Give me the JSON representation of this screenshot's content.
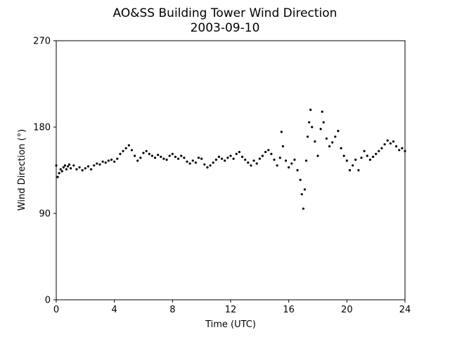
{
  "chart_data": {
    "type": "scatter",
    "title": "AO&SS Building Tower Wind Direction",
    "subtitle": "2003-09-10",
    "xlabel": "Time (UTC)",
    "ylabel": "Wind Direction (°)",
    "xlim": [
      0,
      24
    ],
    "ylim": [
      0,
      270
    ],
    "xticks": [
      0,
      4,
      8,
      12,
      16,
      20,
      24
    ],
    "yticks": [
      0,
      90,
      180,
      270
    ],
    "grid": false,
    "marker_color": "#000000",
    "series": [
      {
        "name": "",
        "points": [
          [
            0.0,
            140
          ],
          [
            0.1,
            128
          ],
          [
            0.2,
            132
          ],
          [
            0.3,
            136
          ],
          [
            0.4,
            134
          ],
          [
            0.5,
            138
          ],
          [
            0.6,
            140
          ],
          [
            0.7,
            136
          ],
          [
            0.8,
            139
          ],
          [
            0.9,
            141
          ],
          [
            1.0,
            137
          ],
          [
            1.2,
            140
          ],
          [
            1.4,
            136
          ],
          [
            1.6,
            138
          ],
          [
            1.8,
            135
          ],
          [
            2.0,
            137
          ],
          [
            2.2,
            139
          ],
          [
            2.4,
            136
          ],
          [
            2.6,
            140
          ],
          [
            2.8,
            142
          ],
          [
            3.0,
            141
          ],
          [
            3.2,
            144
          ],
          [
            3.4,
            143
          ],
          [
            3.6,
            145
          ],
          [
            3.8,
            146
          ],
          [
            4.0,
            144
          ],
          [
            4.2,
            147
          ],
          [
            4.4,
            152
          ],
          [
            4.6,
            155
          ],
          [
            4.8,
            158
          ],
          [
            5.0,
            161
          ],
          [
            5.2,
            156
          ],
          [
            5.4,
            150
          ],
          [
            5.6,
            145
          ],
          [
            5.8,
            148
          ],
          [
            6.0,
            153
          ],
          [
            6.2,
            155
          ],
          [
            6.4,
            152
          ],
          [
            6.6,
            150
          ],
          [
            6.8,
            148
          ],
          [
            7.0,
            151
          ],
          [
            7.2,
            149
          ],
          [
            7.4,
            147
          ],
          [
            7.6,
            146
          ],
          [
            7.8,
            150
          ],
          [
            8.0,
            152
          ],
          [
            8.2,
            149
          ],
          [
            8.4,
            147
          ],
          [
            8.6,
            150
          ],
          [
            8.8,
            148
          ],
          [
            9.0,
            144
          ],
          [
            9.2,
            142
          ],
          [
            9.4,
            145
          ],
          [
            9.6,
            143
          ],
          [
            9.8,
            148
          ],
          [
            10.0,
            147
          ],
          [
            10.2,
            141
          ],
          [
            10.4,
            138
          ],
          [
            10.6,
            140
          ],
          [
            10.8,
            143
          ],
          [
            11.0,
            146
          ],
          [
            11.2,
            149
          ],
          [
            11.4,
            147
          ],
          [
            11.6,
            145
          ],
          [
            11.8,
            148
          ],
          [
            12.0,
            150
          ],
          [
            12.2,
            147
          ],
          [
            12.4,
            152
          ],
          [
            12.6,
            154
          ],
          [
            12.8,
            149
          ],
          [
            13.0,
            146
          ],
          [
            13.2,
            143
          ],
          [
            13.4,
            140
          ],
          [
            13.6,
            145
          ],
          [
            13.8,
            142
          ],
          [
            14.0,
            147
          ],
          [
            14.2,
            150
          ],
          [
            14.4,
            154
          ],
          [
            14.6,
            156
          ],
          [
            14.8,
            152
          ],
          [
            15.0,
            146
          ],
          [
            15.2,
            140
          ],
          [
            15.4,
            148
          ],
          [
            15.5,
            175
          ],
          [
            15.6,
            160
          ],
          [
            15.8,
            145
          ],
          [
            16.0,
            138
          ],
          [
            16.2,
            142
          ],
          [
            16.4,
            146
          ],
          [
            16.6,
            135
          ],
          [
            16.8,
            125
          ],
          [
            16.9,
            110
          ],
          [
            17.0,
            95
          ],
          [
            17.1,
            115
          ],
          [
            17.2,
            145
          ],
          [
            17.3,
            170
          ],
          [
            17.4,
            185
          ],
          [
            17.5,
            198
          ],
          [
            17.6,
            180
          ],
          [
            17.8,
            165
          ],
          [
            18.0,
            150
          ],
          [
            18.2,
            178
          ],
          [
            18.3,
            196
          ],
          [
            18.4,
            185
          ],
          [
            18.6,
            168
          ],
          [
            18.8,
            160
          ],
          [
            19.0,
            164
          ],
          [
            19.2,
            170
          ],
          [
            19.4,
            176
          ],
          [
            19.6,
            158
          ],
          [
            19.8,
            150
          ],
          [
            20.0,
            145
          ],
          [
            20.2,
            135
          ],
          [
            20.4,
            140
          ],
          [
            20.6,
            146
          ],
          [
            20.8,
            135
          ],
          [
            21.0,
            148
          ],
          [
            21.2,
            155
          ],
          [
            21.4,
            150
          ],
          [
            21.6,
            146
          ],
          [
            21.8,
            149
          ],
          [
            22.0,
            152
          ],
          [
            22.2,
            155
          ],
          [
            22.4,
            158
          ],
          [
            22.6,
            162
          ],
          [
            22.8,
            166
          ],
          [
            23.0,
            163
          ],
          [
            23.2,
            165
          ],
          [
            23.4,
            160
          ],
          [
            23.6,
            156
          ],
          [
            23.8,
            158
          ],
          [
            24.0,
            155
          ]
        ]
      }
    ]
  }
}
